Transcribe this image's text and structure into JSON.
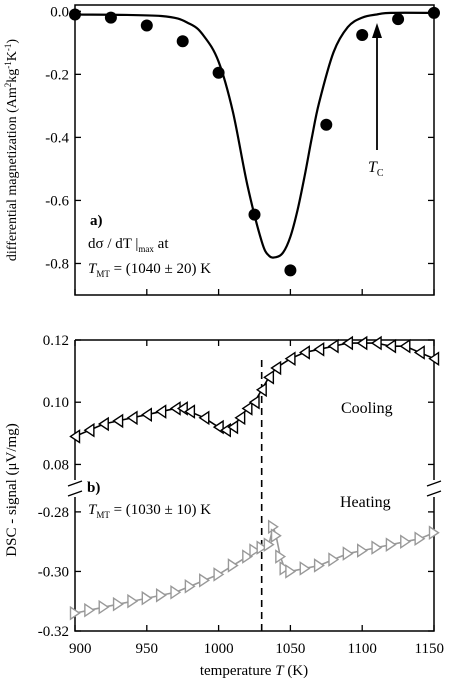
{
  "chart_data": [
    {
      "type": "scatter",
      "panel_label": "a)",
      "ylabel": {
        "main": "differential magnetization (Am",
        "sup1": "2",
        "mid": "kg",
        "sup2": "-1",
        "mid2": "K",
        "sup3": "-1",
        "end": ")"
      },
      "ylim": [
        -0.9,
        0.02
      ],
      "xlim": [
        900,
        1150
      ],
      "yticks": [
        {
          "v": 0.0,
          "label": "0.0"
        },
        {
          "v": -0.2,
          "label": "-0.2"
        },
        {
          "v": -0.4,
          "label": "-0.4"
        },
        {
          "v": -0.6,
          "label": "-0.6"
        },
        {
          "v": -0.8,
          "label": "-0.8"
        }
      ],
      "annotation": {
        "line1": "dσ / dT |",
        "line1_sub": "max",
        "line1_end": " at",
        "line2_T": "T",
        "line2_sub": "MT",
        "line2_val": " = (1040 ± 20) K"
      },
      "tc_label": {
        "T": "T",
        "sub": "C"
      },
      "points": {
        "x": [
          900,
          925,
          950,
          975,
          1000,
          1025,
          1050,
          1075,
          1100,
          1125,
          1150
        ],
        "y": [
          -0.01,
          -0.02,
          -0.045,
          -0.095,
          -0.195,
          -0.645,
          -0.822,
          -0.36,
          -0.075,
          -0.025,
          -0.005
        ]
      },
      "fit_curve": {
        "x": [
          900,
          960,
          980,
          990,
          1000,
          1010,
          1020,
          1030,
          1035,
          1040,
          1045,
          1050,
          1055,
          1060,
          1065,
          1070,
          1080,
          1090,
          1100,
          1110,
          1120,
          1150
        ],
        "y": [
          -0.01,
          -0.015,
          -0.04,
          -0.08,
          -0.16,
          -0.32,
          -0.55,
          -0.73,
          -0.775,
          -0.78,
          -0.765,
          -0.715,
          -0.63,
          -0.52,
          -0.4,
          -0.29,
          -0.13,
          -0.05,
          -0.02,
          -0.01,
          -0.005,
          -0.005
        ]
      }
    },
    {
      "type": "line",
      "panel_label": "b)",
      "ylabel": "DSC - signal (μV/mg)",
      "xlabel": {
        "text": "temperature ",
        "T": "T",
        "unit": " (K)"
      },
      "xlim": [
        900,
        1150
      ],
      "xticks": [
        900,
        950,
        1000,
        1050,
        1100,
        1150
      ],
      "axis_break": true,
      "upper_segment": {
        "ylim": [
          0.075,
          0.12
        ],
        "yticks": [
          {
            "v": 0.12,
            "label": "0.12"
          },
          {
            "v": 0.1,
            "label": "0.10"
          },
          {
            "v": 0.08,
            "label": "0.08"
          }
        ]
      },
      "lower_segment": {
        "ylim": [
          -0.32,
          -0.275
        ],
        "yticks": [
          {
            "v": -0.28,
            "label": "-0.28"
          },
          {
            "v": -0.3,
            "label": "-0.30"
          },
          {
            "v": -0.32,
            "label": "-0.32"
          }
        ]
      },
      "vline_x": 1030,
      "annotation": {
        "T": "T",
        "sub": "MT",
        "val": " = (1030 ± 10) K"
      },
      "series": [
        {
          "name": "Cooling",
          "segment": "upper",
          "marker": "triangle-left",
          "color": "#000000",
          "x": [
            900,
            910,
            920,
            930,
            940,
            950,
            960,
            970,
            975,
            980,
            990,
            1000,
            1005,
            1010,
            1015,
            1020,
            1025,
            1030,
            1035,
            1040,
            1050,
            1060,
            1070,
            1080,
            1090,
            1100,
            1110,
            1120,
            1130,
            1140,
            1150
          ],
          "y": [
            0.089,
            0.091,
            0.093,
            0.094,
            0.095,
            0.096,
            0.097,
            0.098,
            0.098,
            0.097,
            0.095,
            0.092,
            0.091,
            0.092,
            0.095,
            0.098,
            0.1,
            0.104,
            0.108,
            0.111,
            0.114,
            0.116,
            0.117,
            0.118,
            0.119,
            0.119,
            0.119,
            0.118,
            0.118,
            0.116,
            0.114
          ]
        },
        {
          "name": "Heating",
          "segment": "lower",
          "marker": "triangle-right",
          "color": "#999999",
          "x": [
            900,
            910,
            920,
            930,
            940,
            950,
            960,
            970,
            980,
            990,
            1000,
            1010,
            1020,
            1025,
            1030,
            1035,
            1038,
            1040,
            1043,
            1046,
            1050,
            1060,
            1070,
            1080,
            1090,
            1100,
            1110,
            1120,
            1130,
            1140,
            1150
          ],
          "y": [
            -0.314,
            -0.313,
            -0.312,
            -0.311,
            -0.31,
            -0.309,
            -0.308,
            -0.307,
            -0.305,
            -0.303,
            -0.301,
            -0.298,
            -0.295,
            -0.293,
            -0.292,
            -0.291,
            -0.285,
            -0.288,
            -0.295,
            -0.299,
            -0.3,
            -0.299,
            -0.298,
            -0.296,
            -0.294,
            -0.293,
            -0.292,
            -0.291,
            -0.29,
            -0.289,
            -0.287
          ]
        }
      ],
      "series_labels": [
        {
          "text": "Cooling",
          "x": 1118,
          "y": 0.1
        }
      ]
    }
  ]
}
